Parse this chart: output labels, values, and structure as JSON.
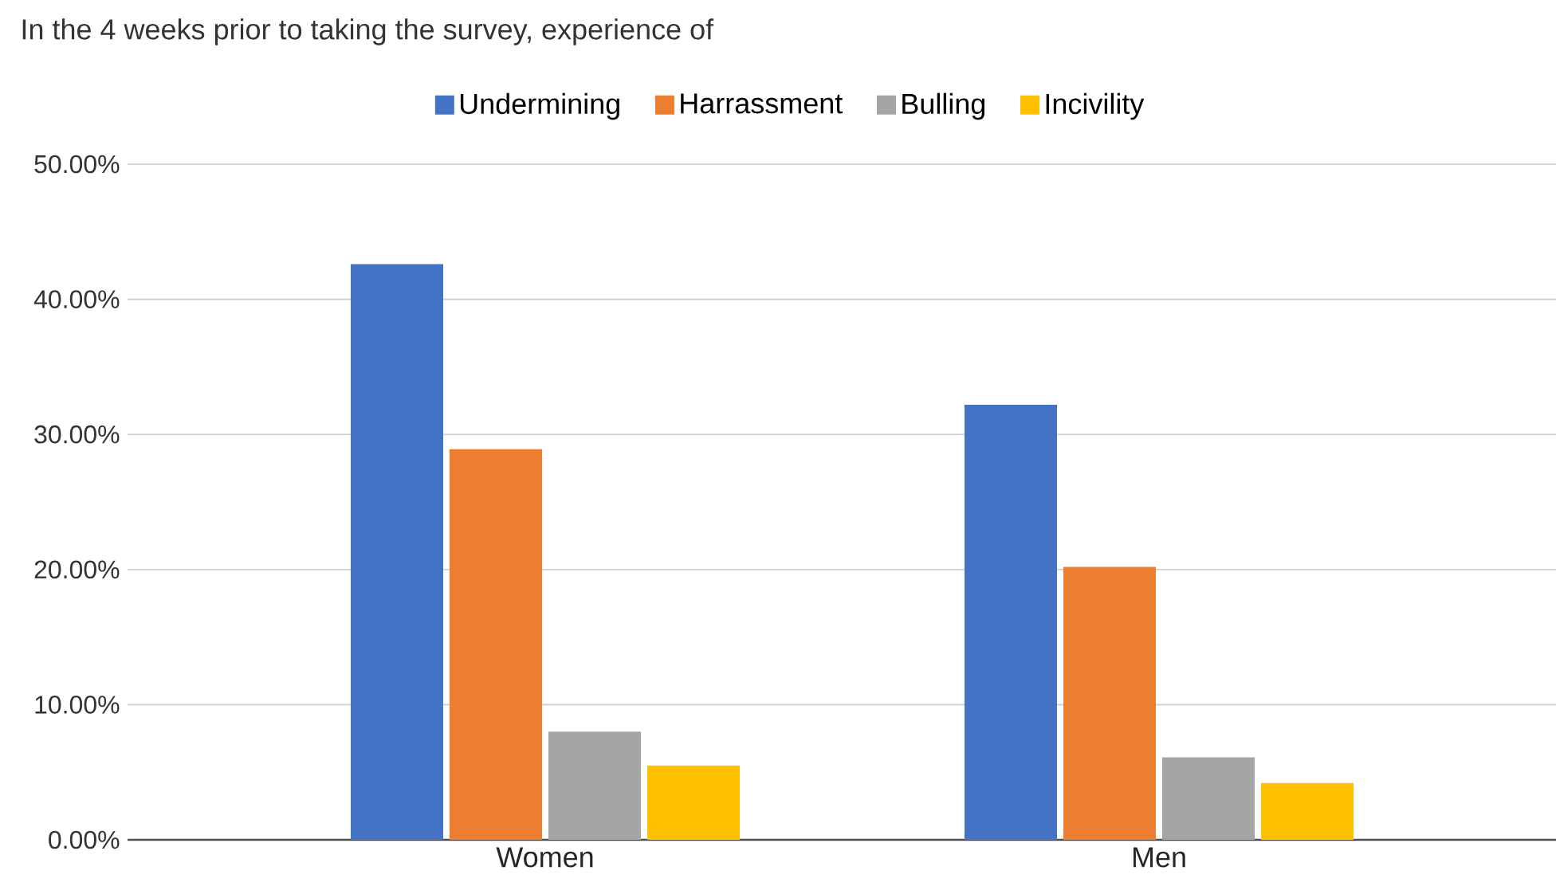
{
  "chart_data": {
    "type": "bar",
    "title": "In the 4 weeks prior to taking the survey, experience of",
    "categories": [
      "Women",
      "Men"
    ],
    "series": [
      {
        "name": "Undermining",
        "color": "#4472c4",
        "values": [
          42.6,
          32.2
        ]
      },
      {
        "name": "Harrassment",
        "color": "#ed7d31",
        "values": [
          28.9,
          20.2
        ]
      },
      {
        "name": "Bulling",
        "color": "#a5a5a5",
        "values": [
          8.0,
          6.1
        ]
      },
      {
        "name": "Incivility",
        "color": "#ffc000",
        "values": [
          5.5,
          4.2
        ]
      }
    ],
    "ylim": [
      0,
      50
    ],
    "yticks": [
      {
        "value": 0,
        "label": "0.00%"
      },
      {
        "value": 10,
        "label": "10.00%"
      },
      {
        "value": 20,
        "label": "20.00%"
      },
      {
        "value": 30,
        "label": "30.00%"
      },
      {
        "value": 40,
        "label": "40.00%"
      },
      {
        "value": 50,
        "label": "50.00%"
      }
    ],
    "grid": "y",
    "legend": "top"
  }
}
